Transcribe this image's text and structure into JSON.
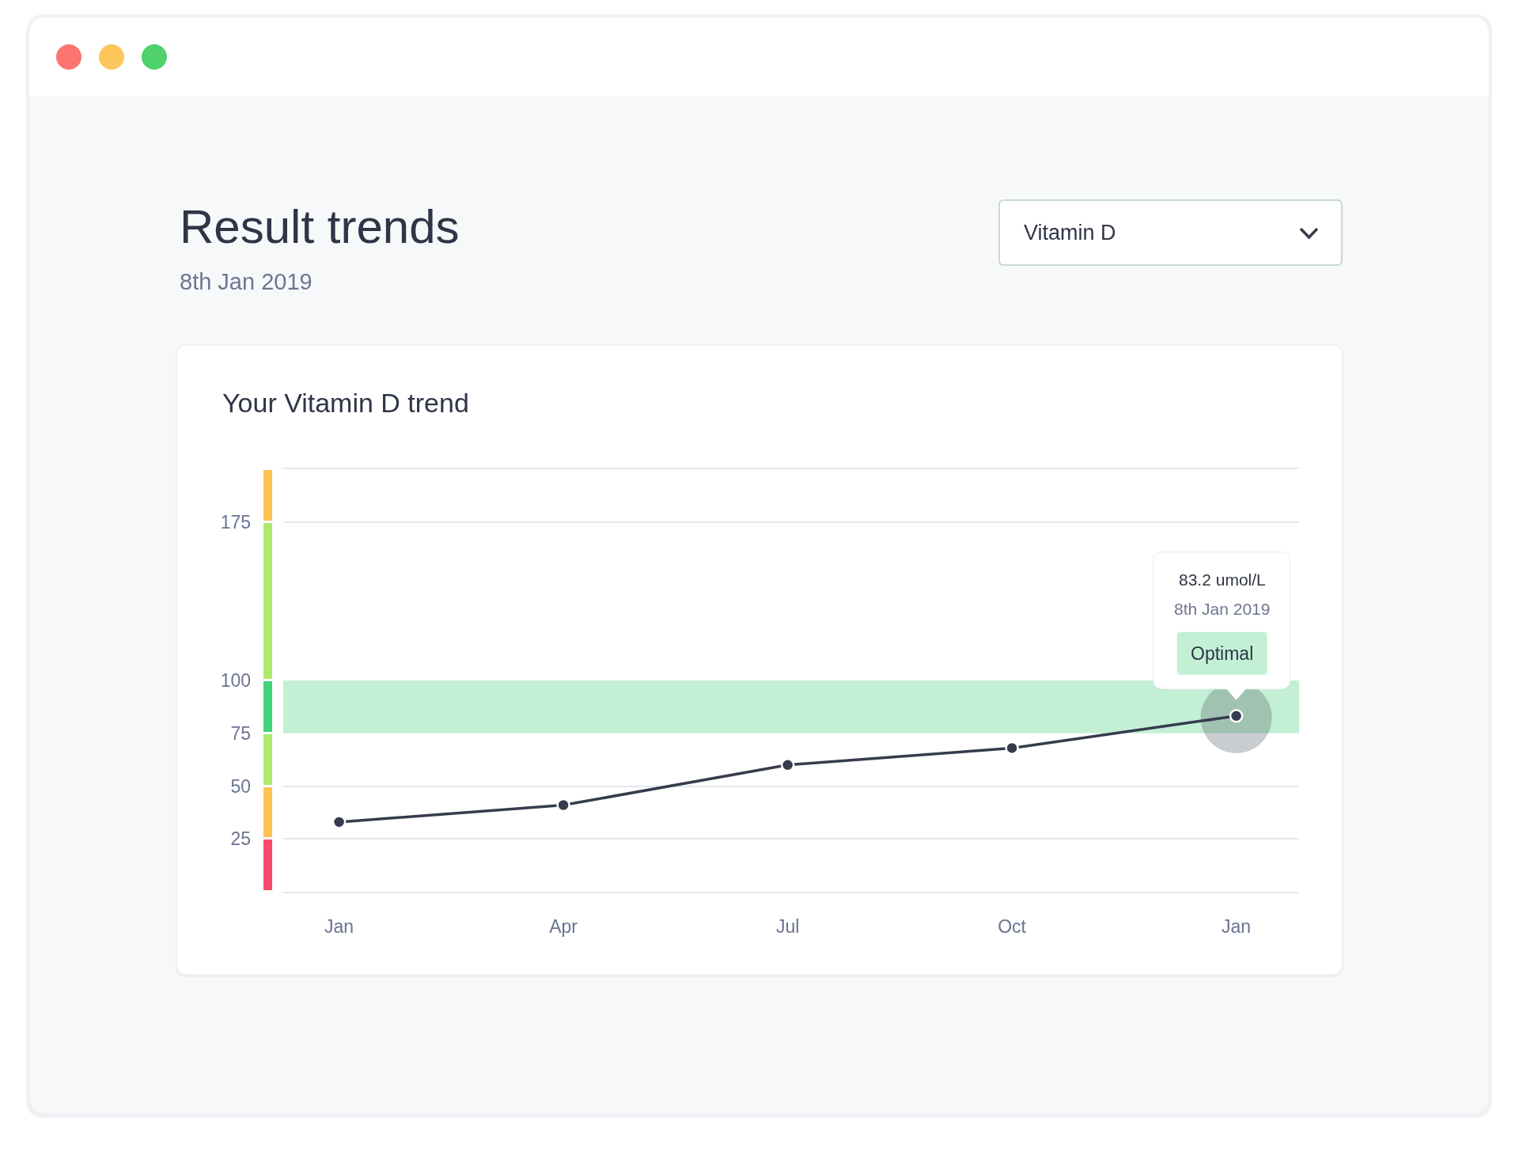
{
  "chart_data": [
    {
      "type": "other",
      "title": "Result trends",
      "subtitle": "8th Jan 2019",
      "annotations": [
        "Vitamin D"
      ]
    },
    {
      "type": "bar",
      "stacked": true,
      "categories": [
        null
      ],
      "series": [
        {
          "color": "#f9496b",
          "values": [
            25
          ]
        },
        {
          "color": "#fdc154",
          "values": [
            25
          ]
        },
        {
          "color": "#aee96c",
          "values": [
            25
          ]
        },
        {
          "color": "#42d27a",
          "values": [
            25
          ]
        },
        {
          "color": "#aee96c",
          "values": [
            75
          ]
        },
        {
          "color": "#fdc154",
          "values": [
            25
          ]
        }
      ],
      "ylim": [
        0,
        200
      ],
      "yticks": [
        25,
        50,
        75,
        100,
        175
      ],
      "tick_labels": "y"
    },
    {
      "type": "line",
      "title": "Your Vitamin D trend",
      "categories": [
        "Jan",
        "Apr",
        "Jul",
        "Oct",
        "Jan"
      ],
      "values": [
        33,
        41,
        60,
        68,
        83.2
      ],
      "color": "#363c4e",
      "ylim": [
        0,
        200
      ],
      "yticks": [
        25,
        50,
        175
      ],
      "grid": "y",
      "tick_labels": "x",
      "marker": "circle",
      "line_style": "solid",
      "bands": [
        {
          "axis": "y",
          "from": 75,
          "to": 100,
          "color": "#c3f0d5"
        }
      ],
      "annotations": [
        "83.2 umol/L",
        "8th Jan 2019",
        "Optimal"
      ]
    }
  ]
}
